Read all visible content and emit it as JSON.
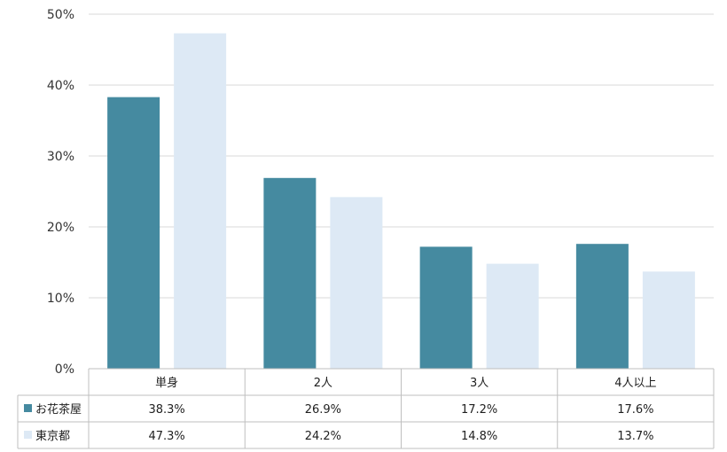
{
  "chart_data": {
    "type": "bar",
    "categories": [
      "単身",
      "2人",
      "3人",
      "4人以上"
    ],
    "series": [
      {
        "name": "お花茶屋",
        "values": [
          38.3,
          26.9,
          17.2,
          17.6
        ],
        "labels": [
          "38.3%",
          "26.9%",
          "17.2%",
          "17.6%"
        ],
        "color": "#458aa0"
      },
      {
        "name": "東京都",
        "values": [
          47.3,
          24.2,
          14.8,
          13.7
        ],
        "labels": [
          "47.3%",
          "24.2%",
          "14.8%",
          "13.7%"
        ],
        "color": "#dde9f5"
      }
    ],
    "y_ticks": [
      "0%",
      "10%",
      "20%",
      "30%",
      "40%",
      "50%"
    ],
    "ylim": [
      0,
      50
    ],
    "y_unit": "%",
    "grid": true,
    "legend": "data-table-left",
    "title": "",
    "xlabel": "",
    "ylabel": ""
  },
  "colors": {
    "gridline": "#d9d9d9",
    "table_border": "#bfbfbf"
  }
}
